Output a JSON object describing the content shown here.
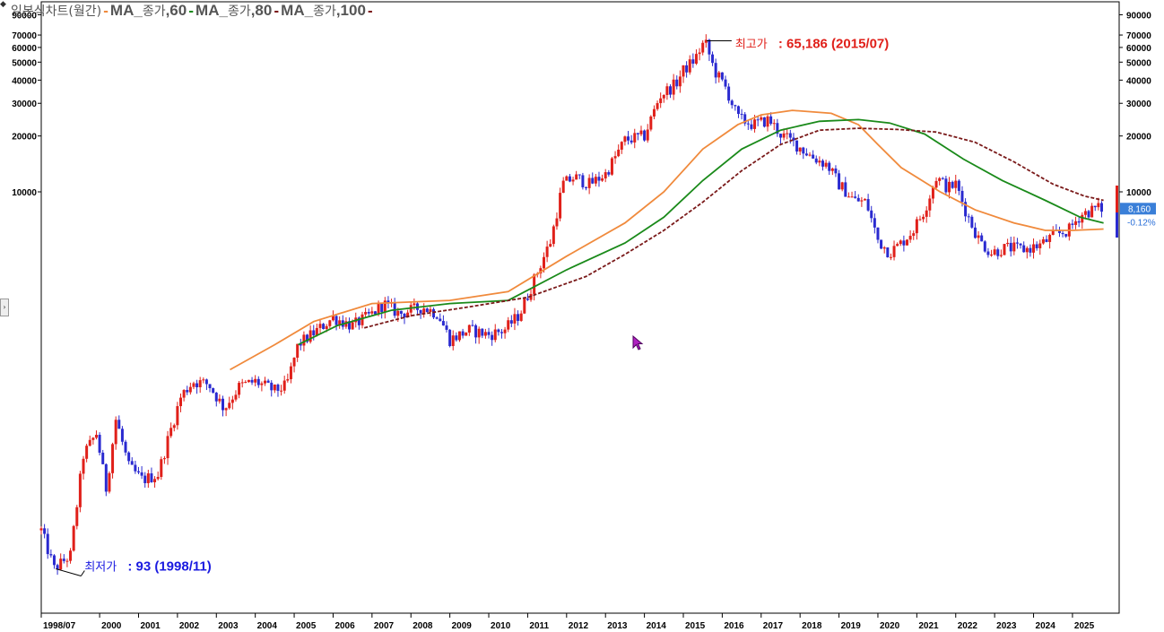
{
  "legend": {
    "title": "일본식차트(월간)",
    "items": [
      {
        "label": "MA_",
        "sub": "종가",
        "period": ",60",
        "color": "#f08a3c"
      },
      {
        "label": "MA_",
        "sub": "종가",
        "period": ",80",
        "color": "#1a8a1a"
      },
      {
        "label": "MA_",
        "sub": "종가",
        "period": ",100",
        "color": "#7a1a1a"
      }
    ]
  },
  "chart_data": {
    "type": "candlestick",
    "title": "일본식차트(월간)",
    "y_scale": "log",
    "y_ticks": [
      "90000",
      "70000",
      "60000",
      "50000",
      "40000",
      "30000",
      "20000",
      "10000"
    ],
    "y_tick_values": [
      90000,
      70000,
      60000,
      50000,
      40000,
      30000,
      20000,
      10000
    ],
    "x_labels": [
      "1998/07",
      "2000",
      "2001",
      "2002",
      "2003",
      "2004",
      "2005",
      "2006",
      "2007",
      "2008",
      "2009",
      "2010",
      "2011",
      "2012",
      "2013",
      "2014",
      "2015",
      "2016",
      "2017",
      "2018",
      "2019",
      "2020",
      "2021",
      "2022",
      "2023",
      "2024",
      "2025"
    ],
    "close_anchors": [
      [
        1998.5,
        150
      ],
      [
        1998.83,
        93
      ],
      [
        1999.25,
        110
      ],
      [
        1999.58,
        380
      ],
      [
        1999.92,
        500
      ],
      [
        2000.17,
        250
      ],
      [
        2000.42,
        600
      ],
      [
        2000.75,
        330
      ],
      [
        2001.1,
        280
      ],
      [
        2001.5,
        300
      ],
      [
        2001.8,
        500
      ],
      [
        2002.1,
        800
      ],
      [
        2002.4,
        950
      ],
      [
        2002.8,
        920
      ],
      [
        2003.2,
        680
      ],
      [
        2003.6,
        900
      ],
      [
        2004.0,
        950
      ],
      [
        2004.5,
        850
      ],
      [
        2004.8,
        900
      ],
      [
        2005.1,
        1500
      ],
      [
        2005.6,
        1800
      ],
      [
        2006.0,
        2100
      ],
      [
        2006.5,
        1900
      ],
      [
        2007.0,
        2200
      ],
      [
        2007.3,
        2500
      ],
      [
        2007.7,
        2200
      ],
      [
        2008.3,
        2400
      ],
      [
        2008.7,
        2200
      ],
      [
        2009.0,
        1600
      ],
      [
        2009.5,
        1800
      ],
      [
        2010.0,
        1700
      ],
      [
        2010.4,
        1800
      ],
      [
        2010.8,
        2200
      ],
      [
        2011.2,
        3500
      ],
      [
        2011.6,
        5500
      ],
      [
        2011.9,
        11000
      ],
      [
        2012.2,
        12000
      ],
      [
        2012.6,
        11000
      ],
      [
        2013.0,
        12500
      ],
      [
        2013.5,
        19000
      ],
      [
        2014.0,
        20000
      ],
      [
        2014.4,
        33000
      ],
      [
        2014.8,
        38000
      ],
      [
        2015.0,
        45000
      ],
      [
        2015.3,
        52000
      ],
      [
        2015.55,
        65186
      ],
      [
        2015.8,
        45000
      ],
      [
        2016.1,
        36000
      ],
      [
        2016.4,
        25000
      ],
      [
        2016.8,
        23000
      ],
      [
        2017.2,
        24500
      ],
      [
        2017.5,
        20500
      ],
      [
        2017.9,
        18000
      ],
      [
        2018.3,
        15500
      ],
      [
        2018.7,
        14000
      ],
      [
        2019.0,
        11000
      ],
      [
        2019.4,
        9000
      ],
      [
        2019.7,
        8800
      ],
      [
        2020.0,
        5500
      ],
      [
        2020.3,
        4700
      ],
      [
        2020.6,
        5300
      ],
      [
        2020.9,
        6200
      ],
      [
        2021.2,
        8000
      ],
      [
        2021.5,
        12000
      ],
      [
        2021.8,
        10500
      ],
      [
        2022.0,
        11000
      ],
      [
        2022.3,
        7500
      ],
      [
        2022.6,
        5500
      ],
      [
        2022.9,
        4700
      ],
      [
        2023.3,
        5000
      ],
      [
        2023.8,
        4900
      ],
      [
        2024.2,
        5200
      ],
      [
        2024.5,
        5800
      ],
      [
        2024.9,
        6200
      ],
      [
        2025.2,
        7500
      ],
      [
        2025.6,
        8160
      ]
    ],
    "series": [
      {
        "name": "MA_종가,60",
        "color": "#f08a3c",
        "dashed": false,
        "points": [
          [
            2003.35,
            1100
          ],
          [
            2004.5,
            1500
          ],
          [
            2005.5,
            2000
          ],
          [
            2007.0,
            2500
          ],
          [
            2009.0,
            2600
          ],
          [
            2010.5,
            2900
          ],
          [
            2012.0,
            4500
          ],
          [
            2013.5,
            6800
          ],
          [
            2014.5,
            10000
          ],
          [
            2015.5,
            17000
          ],
          [
            2016.4,
            23000
          ],
          [
            2017.0,
            26000
          ],
          [
            2017.8,
            27500
          ],
          [
            2018.8,
            26500
          ],
          [
            2019.5,
            23000
          ],
          [
            2020.0,
            18000
          ],
          [
            2020.6,
            13500
          ],
          [
            2021.6,
            10000
          ],
          [
            2022.5,
            8000
          ],
          [
            2023.5,
            6800
          ],
          [
            2024.3,
            6200
          ],
          [
            2025.0,
            6200
          ],
          [
            2025.8,
            6300
          ]
        ]
      },
      {
        "name": "MA_종가,80",
        "color": "#1a8a1a",
        "dashed": false,
        "points": [
          [
            2005.1,
            1500
          ],
          [
            2006.1,
            1900
          ],
          [
            2007.5,
            2300
          ],
          [
            2009.0,
            2500
          ],
          [
            2010.5,
            2600
          ],
          [
            2012.0,
            3800
          ],
          [
            2013.5,
            5300
          ],
          [
            2014.5,
            7300
          ],
          [
            2015.5,
            11500
          ],
          [
            2016.5,
            17000
          ],
          [
            2017.5,
            21500
          ],
          [
            2018.5,
            24000
          ],
          [
            2019.5,
            24500
          ],
          [
            2020.3,
            23500
          ],
          [
            2021.2,
            20500
          ],
          [
            2022.2,
            15000
          ],
          [
            2023.2,
            11500
          ],
          [
            2024.3,
            9000
          ],
          [
            2025.2,
            7300
          ],
          [
            2025.8,
            6800
          ]
        ]
      },
      {
        "name": "MA_종가,100",
        "color": "#7a1a1a",
        "dashed": true,
        "points": [
          [
            2006.8,
            1850
          ],
          [
            2008.0,
            2150
          ],
          [
            2009.5,
            2400
          ],
          [
            2011.0,
            2700
          ],
          [
            2012.5,
            3500
          ],
          [
            2013.5,
            4600
          ],
          [
            2014.5,
            6200
          ],
          [
            2015.5,
            8800
          ],
          [
            2016.5,
            13000
          ],
          [
            2017.5,
            18000
          ],
          [
            2018.5,
            21500
          ],
          [
            2019.5,
            22000
          ],
          [
            2020.5,
            21700
          ],
          [
            2021.5,
            21000
          ],
          [
            2022.5,
            18500
          ],
          [
            2023.5,
            14500
          ],
          [
            2024.5,
            11000
          ],
          [
            2025.3,
            9500
          ],
          [
            2025.8,
            9000
          ]
        ]
      }
    ],
    "annotations": [
      {
        "label": "최고가",
        "text": ": 65,186 (2015/07)",
        "color": "#e0201a",
        "x": 2015.55,
        "y": 65186
      },
      {
        "label": "최저가",
        "text": ": 93 (1998/11)",
        "color": "#1a1ae0",
        "x": 1998.83,
        "y": 93
      }
    ],
    "last_price": "8,160",
    "change": "-0.12%",
    "up_color": "#e0201a",
    "down_color": "#2a2ad0"
  }
}
